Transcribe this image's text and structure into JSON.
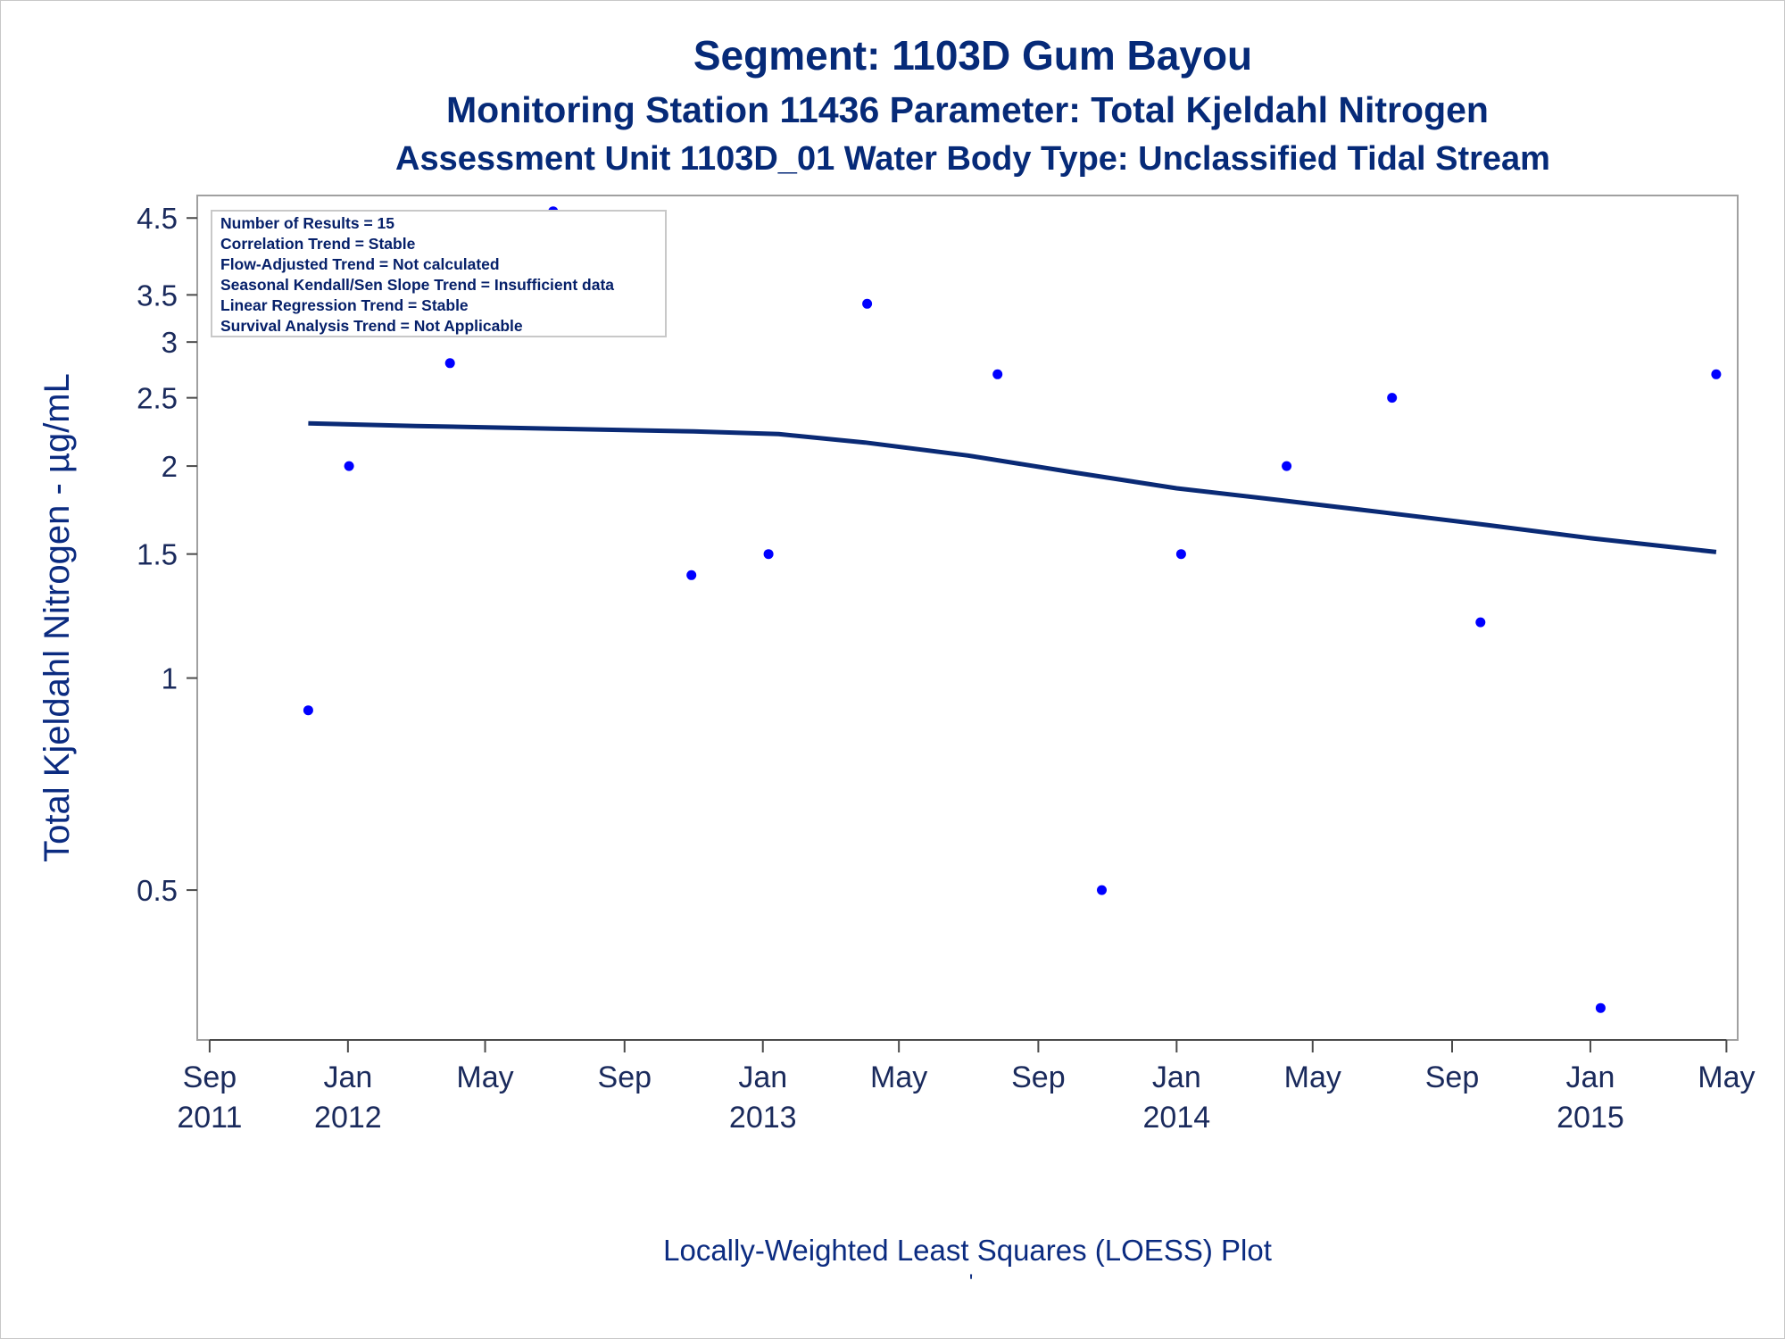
{
  "chart_data": {
    "type": "scatter",
    "title": "Segment: 1103D  Gum Bayou",
    "subtitle": "Monitoring Station 11436 Parameter: Total Kjeldahl Nitrogen",
    "subtitle2": "Assessment Unit 1103D_01   Water Body Type: Unclassified Tidal Stream",
    "ylabel": "Total Kjeldahl Nitrogen -  µg/mL",
    "xlabel": "Locally-Weighted Least Squares (LOESS) Plot",
    "footnote": "'",
    "y_scale": "log",
    "ylim": [
      0.32,
      4.65
    ],
    "xlim": [
      "2011-08-25",
      "2015-05-07"
    ],
    "y_ticks": [
      0.5,
      1,
      1.5,
      2,
      2.5,
      3,
      3.5,
      4.5
    ],
    "y_tick_labels": [
      "0.5",
      "1",
      "1.5",
      "2",
      "2.5",
      "3",
      "3.5",
      "4.5"
    ],
    "x_ticks": [
      {
        "date": "2011-09-01",
        "line1": "Sep",
        "line2": "2011"
      },
      {
        "date": "2012-01-01",
        "line1": "Jan",
        "line2": "2012"
      },
      {
        "date": "2012-05-01",
        "line1": "May",
        "line2": ""
      },
      {
        "date": "2012-09-01",
        "line1": "Sep",
        "line2": ""
      },
      {
        "date": "2013-01-01",
        "line1": "Jan",
        "line2": "2013"
      },
      {
        "date": "2013-05-01",
        "line1": "May",
        "line2": ""
      },
      {
        "date": "2013-09-01",
        "line1": "Sep",
        "line2": ""
      },
      {
        "date": "2014-01-01",
        "line1": "Jan",
        "line2": "2014"
      },
      {
        "date": "2014-05-01",
        "line1": "May",
        "line2": ""
      },
      {
        "date": "2014-09-01",
        "line1": "Sep",
        "line2": ""
      },
      {
        "date": "2015-01-01",
        "line1": "Jan",
        "line2": "2015"
      },
      {
        "date": "2015-05-01",
        "line1": "May",
        "line2": ""
      }
    ],
    "series": [
      {
        "type": "scatter",
        "points": [
          {
            "x": "2011-11-27",
            "y": 0.9
          },
          {
            "x": "2012-01-02",
            "y": 2.0
          },
          {
            "x": "2012-03-31",
            "y": 2.8
          },
          {
            "x": "2012-06-30",
            "y": 4.6
          },
          {
            "x": "2012-10-30",
            "y": 1.4
          },
          {
            "x": "2013-01-06",
            "y": 1.5
          },
          {
            "x": "2013-04-03",
            "y": 3.4
          },
          {
            "x": "2013-07-27",
            "y": 2.7
          },
          {
            "x": "2013-10-27",
            "y": 0.5
          },
          {
            "x": "2014-01-05",
            "y": 1.5
          },
          {
            "x": "2014-04-08",
            "y": 2.0
          },
          {
            "x": "2014-07-10",
            "y": 2.5
          },
          {
            "x": "2014-09-26",
            "y": 1.2
          },
          {
            "x": "2015-01-10",
            "y": 0.34
          },
          {
            "x": "2015-04-22",
            "y": 2.7
          }
        ]
      },
      {
        "type": "line",
        "points": [
          {
            "x": "2011-11-27",
            "y": 2.3
          },
          {
            "x": "2012-03-01",
            "y": 2.28
          },
          {
            "x": "2012-07-01",
            "y": 2.26
          },
          {
            "x": "2012-11-01",
            "y": 2.24
          },
          {
            "x": "2013-01-15",
            "y": 2.22
          },
          {
            "x": "2013-04-01",
            "y": 2.16
          },
          {
            "x": "2013-07-01",
            "y": 2.07
          },
          {
            "x": "2013-10-01",
            "y": 1.96
          },
          {
            "x": "2014-01-01",
            "y": 1.86
          },
          {
            "x": "2014-04-01",
            "y": 1.79
          },
          {
            "x": "2014-07-01",
            "y": 1.72
          },
          {
            "x": "2014-10-01",
            "y": 1.65
          },
          {
            "x": "2015-01-01",
            "y": 1.58
          },
          {
            "x": "2015-04-22",
            "y": 1.51
          }
        ]
      }
    ],
    "legend_box": [
      "Number of Results = 15",
      "Correlation Trend = Stable",
      "Flow-Adjusted Trend = Not calculated",
      "Seasonal Kendall/Sen Slope Trend = Insufficient data",
      "Linear Regression Trend = Stable",
      "Survival Analysis Trend = Not Applicable"
    ],
    "legend_placement": "top-left",
    "grid": false,
    "colors": {
      "points": "#0000ff",
      "line": "#0a2a75",
      "text": "#0b2b80",
      "frame": "#a0a0a0"
    }
  }
}
